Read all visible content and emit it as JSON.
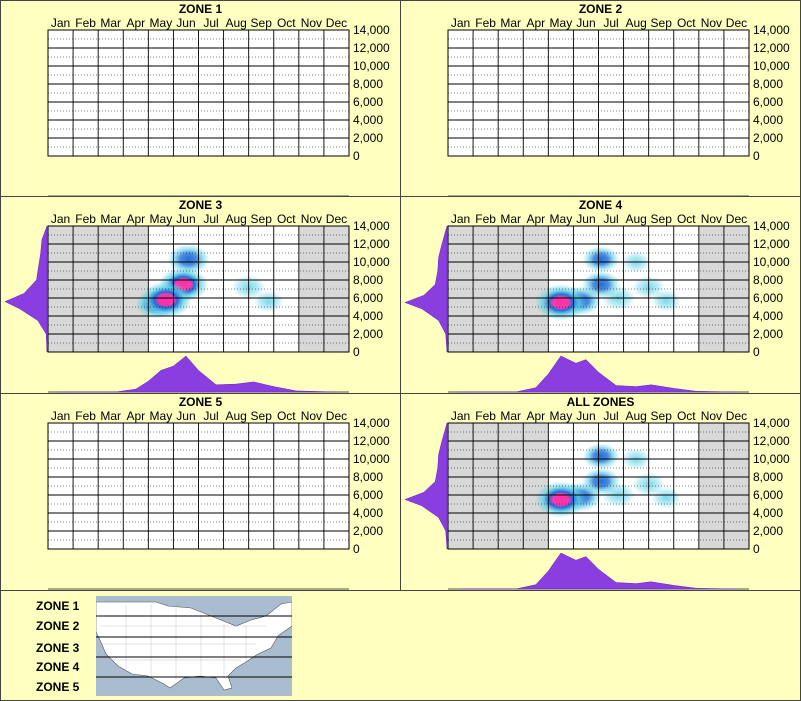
{
  "months": [
    "Jan",
    "Feb",
    "Mar",
    "Apr",
    "May",
    "Jun",
    "Jul",
    "Aug",
    "Sep",
    "Oct",
    "Nov",
    "Dec"
  ],
  "y_ticks": [
    "14,000",
    "12,000",
    "10,000",
    "8,000",
    "6,000",
    "4,000",
    "2,000",
    "0"
  ],
  "colors": {
    "background": "#ffffc0",
    "profile": "#8a3ee0",
    "shade": "#d8d8d8",
    "heat_low": "#62d2e6",
    "heat_mid": "#1f6fd8",
    "heat_high": "#ff2fa6",
    "map_water": "#a9bcd0",
    "map_land": "#ffffff"
  },
  "legend": {
    "zones": [
      "ZONE 1",
      "ZONE 2",
      "ZONE 3",
      "ZONE 4",
      "ZONE 5"
    ],
    "map_icon": "usa-map-zones"
  },
  "chart_data": [
    {
      "type": "heatmap",
      "title": "ZONE 1",
      "x_categories": [
        "Jan",
        "Feb",
        "Mar",
        "Apr",
        "May",
        "Jun",
        "Jul",
        "Aug",
        "Sep",
        "Oct",
        "Nov",
        "Dec"
      ],
      "ylim": [
        0,
        14000
      ],
      "ylabel": "",
      "shaded_months": [],
      "hotspots": [],
      "month_profile": [],
      "elev_profile": []
    },
    {
      "type": "heatmap",
      "title": "ZONE 2",
      "x_categories": [
        "Jan",
        "Feb",
        "Mar",
        "Apr",
        "May",
        "Jun",
        "Jul",
        "Aug",
        "Sep",
        "Oct",
        "Nov",
        "Dec"
      ],
      "ylim": [
        0,
        14000
      ],
      "ylabel": "",
      "shaded_months": [],
      "hotspots": [],
      "month_profile": [],
      "elev_profile": []
    },
    {
      "type": "heatmap",
      "title": "ZONE 3",
      "x_categories": [
        "Jan",
        "Feb",
        "Mar",
        "Apr",
        "May",
        "Jun",
        "Jul",
        "Aug",
        "Sep",
        "Oct",
        "Nov",
        "Dec"
      ],
      "ylim": [
        0,
        14000
      ],
      "ylabel": "",
      "shaded_months": [
        "Jan",
        "Feb",
        "Mar",
        "Apr",
        "Nov",
        "Dec"
      ],
      "hotspots": [
        {
          "month": 5.2,
          "elev": 5800,
          "intensity": 1.0
        },
        {
          "month": 5.9,
          "elev": 7500,
          "intensity": 0.9
        },
        {
          "month": 6.1,
          "elev": 10300,
          "intensity": 0.65
        },
        {
          "month": 4.8,
          "elev": 5300,
          "intensity": 0.6
        },
        {
          "month": 8.5,
          "elev": 7200,
          "intensity": 0.35
        },
        {
          "month": 9.3,
          "elev": 5600,
          "intensity": 0.2
        }
      ],
      "month_profile": [
        {
          "month": 1.0,
          "value": 0
        },
        {
          "month": 3.2,
          "value": 0
        },
        {
          "month": 4.0,
          "value": 0.08
        },
        {
          "month": 4.5,
          "value": 0.3
        },
        {
          "month": 5.0,
          "value": 0.6
        },
        {
          "month": 5.5,
          "value": 0.72
        },
        {
          "month": 6.0,
          "value": 1.0
        },
        {
          "month": 6.5,
          "value": 0.6
        },
        {
          "month": 7.2,
          "value": 0.2
        },
        {
          "month": 8.0,
          "value": 0.22
        },
        {
          "month": 8.7,
          "value": 0.28
        },
        {
          "month": 9.5,
          "value": 0.15
        },
        {
          "month": 10.4,
          "value": 0.03
        },
        {
          "month": 12.0,
          "value": 0
        }
      ],
      "elev_profile": [
        {
          "elev": 0,
          "value": 0
        },
        {
          "elev": 2000,
          "value": 0.02
        },
        {
          "elev": 3500,
          "value": 0.22
        },
        {
          "elev": 4800,
          "value": 0.65
        },
        {
          "elev": 5600,
          "value": 1.0
        },
        {
          "elev": 6500,
          "value": 0.55
        },
        {
          "elev": 8000,
          "value": 0.25
        },
        {
          "elev": 9500,
          "value": 0.2
        },
        {
          "elev": 11000,
          "value": 0.15
        },
        {
          "elev": 12500,
          "value": 0.12
        },
        {
          "elev": 14000,
          "value": 0
        }
      ]
    },
    {
      "type": "heatmap",
      "title": "ZONE 4",
      "x_categories": [
        "Jan",
        "Feb",
        "Mar",
        "Apr",
        "May",
        "Jun",
        "Jul",
        "Aug",
        "Sep",
        "Oct",
        "Nov",
        "Dec"
      ],
      "ylim": [
        0,
        14000
      ],
      "ylabel": "",
      "shaded_months": [
        "Jan",
        "Feb",
        "Mar",
        "Apr",
        "Nov",
        "Dec"
      ],
      "hotspots": [
        {
          "month": 5.0,
          "elev": 5500,
          "intensity": 1.0
        },
        {
          "month": 5.8,
          "elev": 5700,
          "intensity": 0.6
        },
        {
          "month": 6.6,
          "elev": 7500,
          "intensity": 0.5
        },
        {
          "month": 6.6,
          "elev": 10300,
          "intensity": 0.45
        },
        {
          "month": 7.3,
          "elev": 6000,
          "intensity": 0.35
        },
        {
          "month": 8.5,
          "elev": 7200,
          "intensity": 0.3
        },
        {
          "month": 9.2,
          "elev": 5700,
          "intensity": 0.2
        },
        {
          "month": 8.0,
          "elev": 10000,
          "intensity": 0.15
        }
      ],
      "month_profile": [
        {
          "month": 1.0,
          "value": 0
        },
        {
          "month": 3.2,
          "value": 0
        },
        {
          "month": 4.0,
          "value": 0.12
        },
        {
          "month": 4.5,
          "value": 0.5
        },
        {
          "month": 5.0,
          "value": 1.0
        },
        {
          "month": 5.6,
          "value": 0.8
        },
        {
          "month": 6.0,
          "value": 0.9
        },
        {
          "month": 6.5,
          "value": 0.55
        },
        {
          "month": 7.2,
          "value": 0.18
        },
        {
          "month": 8.0,
          "value": 0.15
        },
        {
          "month": 8.6,
          "value": 0.2
        },
        {
          "month": 9.5,
          "value": 0.1
        },
        {
          "month": 10.4,
          "value": 0.02
        },
        {
          "month": 12.0,
          "value": 0
        }
      ],
      "elev_profile": [
        {
          "elev": 0,
          "value": 0
        },
        {
          "elev": 2000,
          "value": 0.03
        },
        {
          "elev": 3500,
          "value": 0.2
        },
        {
          "elev": 4800,
          "value": 0.6
        },
        {
          "elev": 5500,
          "value": 1.0
        },
        {
          "elev": 6300,
          "value": 0.55
        },
        {
          "elev": 7500,
          "value": 0.28
        },
        {
          "elev": 9000,
          "value": 0.22
        },
        {
          "elev": 10500,
          "value": 0.2
        },
        {
          "elev": 12000,
          "value": 0.12
        },
        {
          "elev": 14000,
          "value": 0
        }
      ]
    },
    {
      "type": "heatmap",
      "title": "ZONE 5",
      "x_categories": [
        "Jan",
        "Feb",
        "Mar",
        "Apr",
        "May",
        "Jun",
        "Jul",
        "Aug",
        "Sep",
        "Oct",
        "Nov",
        "Dec"
      ],
      "ylim": [
        0,
        14000
      ],
      "ylabel": "",
      "shaded_months": [],
      "hotspots": [],
      "month_profile": [],
      "elev_profile": []
    },
    {
      "type": "heatmap",
      "title": "ALL ZONES",
      "x_categories": [
        "Jan",
        "Feb",
        "Mar",
        "Apr",
        "May",
        "Jun",
        "Jul",
        "Aug",
        "Sep",
        "Oct",
        "Nov",
        "Dec"
      ],
      "ylim": [
        0,
        14000
      ],
      "ylabel": "",
      "shaded_months": [
        "Jan",
        "Feb",
        "Mar",
        "Apr",
        "Nov",
        "Dec"
      ],
      "hotspots": [
        {
          "month": 5.0,
          "elev": 5500,
          "intensity": 1.0
        },
        {
          "month": 5.8,
          "elev": 5800,
          "intensity": 0.6
        },
        {
          "month": 6.6,
          "elev": 7500,
          "intensity": 0.5
        },
        {
          "month": 6.6,
          "elev": 10300,
          "intensity": 0.45
        },
        {
          "month": 7.3,
          "elev": 6000,
          "intensity": 0.35
        },
        {
          "month": 8.5,
          "elev": 7200,
          "intensity": 0.3
        },
        {
          "month": 9.2,
          "elev": 5700,
          "intensity": 0.2
        },
        {
          "month": 8.0,
          "elev": 10000,
          "intensity": 0.15
        }
      ],
      "month_profile": [
        {
          "month": 1.0,
          "value": 0
        },
        {
          "month": 3.2,
          "value": 0
        },
        {
          "month": 4.0,
          "value": 0.12
        },
        {
          "month": 4.5,
          "value": 0.5
        },
        {
          "month": 5.0,
          "value": 1.0
        },
        {
          "month": 5.6,
          "value": 0.8
        },
        {
          "month": 6.0,
          "value": 0.9
        },
        {
          "month": 6.5,
          "value": 0.55
        },
        {
          "month": 7.2,
          "value": 0.18
        },
        {
          "month": 8.0,
          "value": 0.15
        },
        {
          "month": 8.6,
          "value": 0.2
        },
        {
          "month": 9.5,
          "value": 0.1
        },
        {
          "month": 10.4,
          "value": 0.02
        },
        {
          "month": 12.0,
          "value": 0
        }
      ],
      "elev_profile": [
        {
          "elev": 0,
          "value": 0
        },
        {
          "elev": 2000,
          "value": 0.03
        },
        {
          "elev": 3500,
          "value": 0.2
        },
        {
          "elev": 4800,
          "value": 0.6
        },
        {
          "elev": 5500,
          "value": 1.0
        },
        {
          "elev": 6300,
          "value": 0.55
        },
        {
          "elev": 7500,
          "value": 0.28
        },
        {
          "elev": 9000,
          "value": 0.22
        },
        {
          "elev": 10500,
          "value": 0.2
        },
        {
          "elev": 12000,
          "value": 0.12
        },
        {
          "elev": 14000,
          "value": 0
        }
      ]
    }
  ]
}
